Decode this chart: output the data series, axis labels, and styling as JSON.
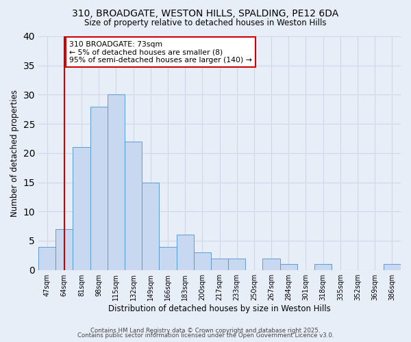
{
  "title1": "310, BROADGATE, WESTON HILLS, SPALDING, PE12 6DA",
  "title2": "Size of property relative to detached houses in Weston Hills",
  "xlabel": "Distribution of detached houses by size in Weston Hills",
  "ylabel": "Number of detached properties",
  "bin_labels": [
    "47sqm",
    "64sqm",
    "81sqm",
    "98sqm",
    "115sqm",
    "132sqm",
    "149sqm",
    "166sqm",
    "183sqm",
    "200sqm",
    "217sqm",
    "233sqm",
    "250sqm",
    "267sqm",
    "284sqm",
    "301sqm",
    "318sqm",
    "335sqm",
    "352sqm",
    "369sqm",
    "386sqm"
  ],
  "bar_values": [
    4,
    7,
    21,
    28,
    30,
    22,
    15,
    4,
    6,
    3,
    2,
    2,
    0,
    2,
    1,
    0,
    1,
    0,
    0,
    0,
    1
  ],
  "bar_color": "#c8d8f0",
  "bar_edge_color": "#5b9bd5",
  "bar_width": 1.0,
  "ylim": [
    0,
    40
  ],
  "yticks": [
    0,
    5,
    10,
    15,
    20,
    25,
    30,
    35,
    40
  ],
  "vline_x": 1.0,
  "vline_color": "#cc0000",
  "annotation_title": "310 BROADGATE: 73sqm",
  "annotation_line1": "← 5% of detached houses are smaller (8)",
  "annotation_line2": "95% of semi-detached houses are larger (140) →",
  "annotation_box_color": "#ffffff",
  "annotation_box_edge": "#cc0000",
  "footer1": "Contains HM Land Registry data © Crown copyright and database right 2025.",
  "footer2": "Contains public sector information licensed under the Open Government Licence v3.0.",
  "background_color": "#e8eef8",
  "grid_color": "#d0d8e8"
}
